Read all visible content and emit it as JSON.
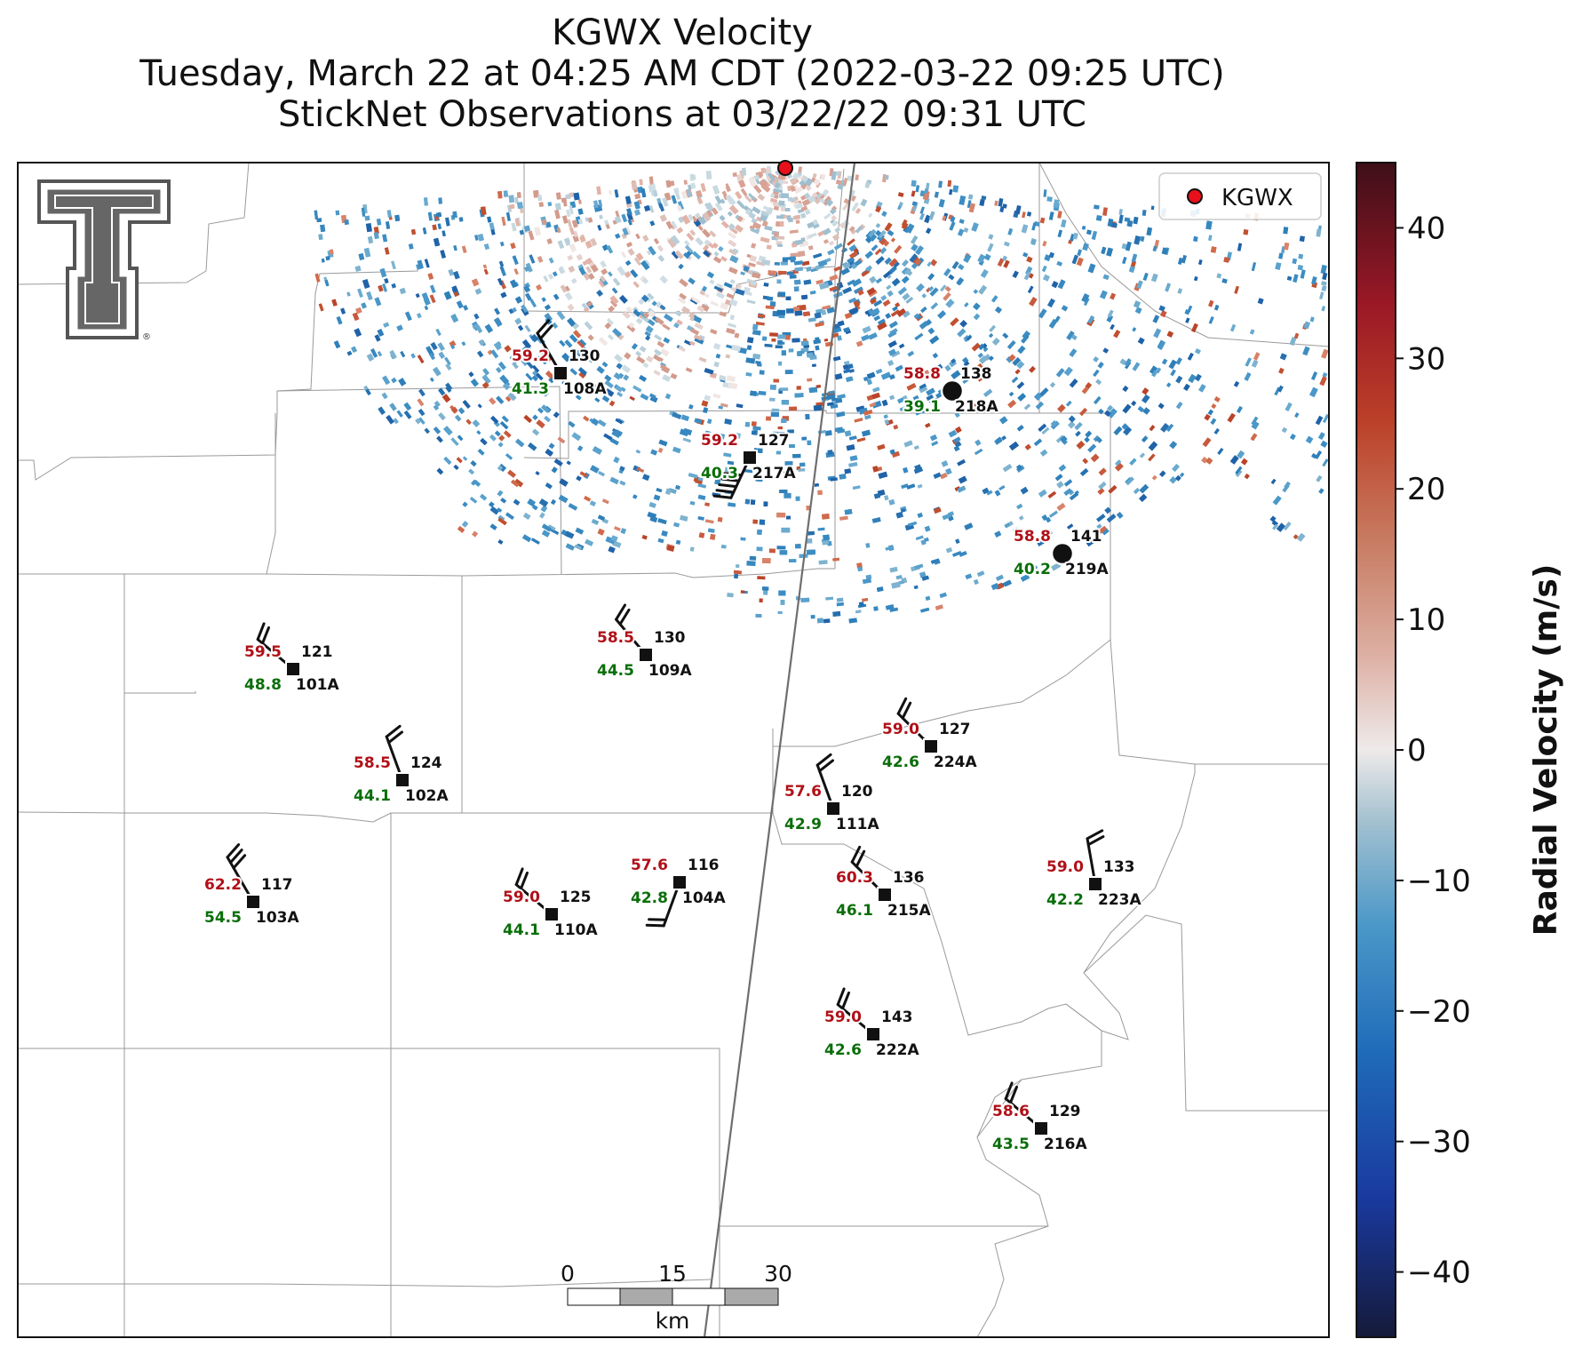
{
  "title": {
    "line1": "KGWX Velocity",
    "line2": "Tuesday, March 22 at 04:25 AM CDT (2022-03-22 09:25 UTC)",
    "line3": "StickNet Observations at 03/22/22 09:31 UTC"
  },
  "legend": {
    "label": "KGWX",
    "marker_color": "#e8101a"
  },
  "colorbar": {
    "label": "Radial Velocity (m/s)",
    "min": -45,
    "max": 45,
    "ticks": [
      "40",
      "30",
      "20",
      "10",
      "0",
      "−10",
      "−20",
      "−30",
      "−40"
    ],
    "tick_values": [
      40,
      30,
      20,
      10,
      0,
      -10,
      -20,
      -30,
      -40
    ]
  },
  "scale_bar": {
    "labels": [
      "0",
      "15",
      "30"
    ],
    "unit": "km"
  },
  "stations": [
    {
      "id": "108A",
      "temp": "59.2",
      "dew": "41.3",
      "pressure": "130",
      "marker": "square",
      "wind_dir": 330,
      "barbs": 2
    },
    {
      "id": "217A",
      "temp": "59.2",
      "dew": "40.3",
      "pressure": "127",
      "marker": "square",
      "wind_dir": 205,
      "barbs": 5
    },
    {
      "id": "218A",
      "temp": "58.8",
      "dew": "39.1",
      "pressure": "138",
      "marker": "circle",
      "wind_dir": null,
      "barbs": 0
    },
    {
      "id": "219A",
      "temp": "58.8",
      "dew": "40.2",
      "pressure": "141",
      "marker": "circle",
      "wind_dir": null,
      "barbs": 0
    },
    {
      "id": "101A",
      "temp": "59.5",
      "dew": "48.8",
      "pressure": "121",
      "marker": "square",
      "wind_dir": 310,
      "barbs": 2
    },
    {
      "id": "109A",
      "temp": "58.5",
      "dew": "44.5",
      "pressure": "130",
      "marker": "square",
      "wind_dir": 320,
      "barbs": 2
    },
    {
      "id": "224A",
      "temp": "59.0",
      "dew": "42.6",
      "pressure": "127",
      "marker": "square",
      "wind_dir": 315,
      "barbs": 2
    },
    {
      "id": "102A",
      "temp": "58.5",
      "dew": "44.1",
      "pressure": "124",
      "marker": "square",
      "wind_dir": 340,
      "barbs": 2
    },
    {
      "id": "111A",
      "temp": "57.6",
      "dew": "42.9",
      "pressure": "120",
      "marker": "square",
      "wind_dir": 340,
      "barbs": 2
    },
    {
      "id": "103A",
      "temp": "62.2",
      "dew": "54.5",
      "pressure": "117",
      "marker": "square",
      "wind_dir": 330,
      "barbs": 3
    },
    {
      "id": "110A",
      "temp": "59.0",
      "dew": "44.1",
      "pressure": "125",
      "marker": "square",
      "wind_dir": 310,
      "barbs": 2
    },
    {
      "id": "104A",
      "temp": "57.6",
      "dew": "42.8",
      "pressure": "116",
      "marker": "square",
      "wind_dir": 200,
      "barbs": 2
    },
    {
      "id": "215A",
      "temp": "60.3",
      "dew": "46.1",
      "pressure": "136",
      "marker": "square",
      "wind_dir": 315,
      "barbs": 2
    },
    {
      "id": "223A",
      "temp": "59.0",
      "dew": "42.2",
      "pressure": "133",
      "marker": "square",
      "wind_dir": 350,
      "barbs": 2
    },
    {
      "id": "222A",
      "temp": "59.0",
      "dew": "42.6",
      "pressure": "143",
      "marker": "square",
      "wind_dir": 310,
      "barbs": 2
    },
    {
      "id": "216A",
      "temp": "58.6",
      "dew": "43.5",
      "pressure": "129",
      "marker": "square",
      "wind_dir": 310,
      "barbs": 2
    }
  ]
}
